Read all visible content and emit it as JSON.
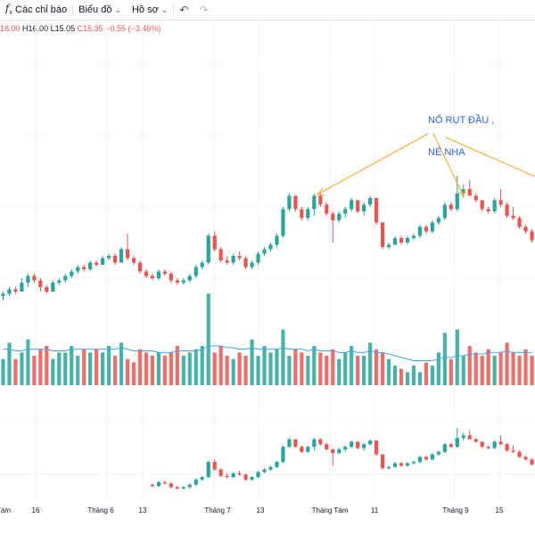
{
  "toolbar": {
    "indicators_label": "Các chỉ báo",
    "chart_label": "Biểu đồ",
    "profile_label": "Hồ sơ"
  },
  "ohlc": {
    "open": "16.00",
    "high": "H16.00",
    "low": "L15.05",
    "close": "C15.35",
    "change": "−0.55 (−3.46%)"
  },
  "annotation": {
    "line1": "NỔ RỤT ĐẦU ,",
    "line2": "NÉ NHA"
  },
  "colors": {
    "up": "#26a69a",
    "down": "#ef5350",
    "volume_ma": "#42a5f5",
    "arrow": "#f5a623",
    "annotation": "#2962ff"
  },
  "x_axis_labels": [
    "Tám",
    "16",
    "Tháng 6",
    "13",
    "Tháng 7",
    "13",
    "Tháng Tám",
    "11",
    "Tháng 9",
    "15"
  ],
  "chart_data": {
    "type": "candlestick",
    "note_scale": "price axis not shown; values in relative units",
    "candles": [
      [
        10,
        11,
        9,
        10.5
      ],
      [
        10.5,
        12,
        10,
        11.5
      ],
      [
        11.5,
        12,
        10.5,
        11
      ],
      [
        11,
        14,
        11,
        13
      ],
      [
        13,
        15,
        12,
        14.5
      ],
      [
        14.5,
        15,
        13,
        13.5
      ],
      [
        13.5,
        14,
        11,
        12
      ],
      [
        12,
        12.5,
        10.5,
        11
      ],
      [
        11,
        13.5,
        11,
        13
      ],
      [
        13,
        14,
        12.5,
        13.5
      ],
      [
        13.5,
        15,
        13,
        14.5
      ],
      [
        14.5,
        16,
        14,
        15.5
      ],
      [
        15.5,
        17,
        15,
        16.5
      ],
      [
        16.5,
        17,
        15.5,
        16
      ],
      [
        16,
        18,
        15.5,
        17.5
      ],
      [
        17.5,
        18,
        16.5,
        17
      ],
      [
        17,
        19,
        17,
        18.5
      ],
      [
        18.5,
        19.5,
        18,
        19
      ],
      [
        19,
        19.5,
        17,
        17.5
      ],
      [
        17.5,
        21,
        17.5,
        20.5
      ],
      [
        20.5,
        24,
        18,
        18.5
      ],
      [
        18.5,
        19,
        17,
        17.5
      ],
      [
        17.5,
        18,
        15,
        15.5
      ],
      [
        15.5,
        16,
        14,
        14.5
      ],
      [
        14.5,
        15,
        13.5,
        14
      ],
      [
        14,
        16,
        13.5,
        15.5
      ],
      [
        15.5,
        16,
        14.5,
        15
      ],
      [
        15,
        15.5,
        13,
        13.5
      ],
      [
        13.5,
        14,
        12.5,
        13
      ],
      [
        13,
        14,
        12.5,
        13.5
      ],
      [
        13.5,
        15,
        13,
        14.5
      ],
      [
        14.5,
        17,
        14,
        16.5
      ],
      [
        16.5,
        18,
        16,
        17.5
      ],
      [
        17.5,
        24,
        17,
        23.5
      ],
      [
        23.5,
        24.5,
        20,
        20.5
      ],
      [
        20.5,
        21,
        17.5,
        18
      ],
      [
        18,
        19,
        17,
        17.5
      ],
      [
        17.5,
        19.5,
        17,
        19
      ],
      [
        19,
        20,
        18,
        18.5
      ],
      [
        18.5,
        19,
        16,
        16.5
      ],
      [
        16.5,
        18,
        16,
        17.5
      ],
      [
        17.5,
        20,
        17,
        19.5
      ],
      [
        19.5,
        21,
        19,
        20.5
      ],
      [
        20.5,
        22,
        20,
        21.5
      ],
      [
        21.5,
        24,
        21,
        23.5
      ],
      [
        23.5,
        30,
        23,
        29.5
      ],
      [
        29.5,
        33,
        29,
        32.5
      ],
      [
        32.5,
        32.5,
        29,
        29.5
      ],
      [
        29.5,
        30,
        27,
        27.5
      ],
      [
        27.5,
        30,
        27,
        29.5
      ],
      [
        29.5,
        33,
        28,
        32.5
      ],
      [
        32.5,
        33,
        30,
        30.5
      ],
      [
        30.5,
        31,
        28,
        28.5
      ],
      [
        28.5,
        29,
        22,
        27
      ],
      [
        27,
        29,
        26.5,
        28.5
      ],
      [
        28.5,
        30,
        27.5,
        29.5
      ],
      [
        29.5,
        32,
        29,
        31.5
      ],
      [
        31.5,
        31.5,
        28.5,
        29
      ],
      [
        29,
        31,
        28,
        30.5
      ],
      [
        30.5,
        32.5,
        30,
        32
      ],
      [
        32,
        32,
        26,
        26.5
      ],
      [
        26.5,
        26.5,
        20.5,
        21
      ],
      [
        21,
        22,
        20.5,
        21.5
      ],
      [
        21.5,
        23.5,
        21.5,
        23
      ],
      [
        23,
        23.5,
        21.5,
        22
      ],
      [
        22,
        23.5,
        21.5,
        23
      ],
      [
        23,
        24,
        22.5,
        23.5
      ],
      [
        23.5,
        26,
        23,
        25.5
      ],
      [
        25.5,
        26,
        24,
        24.5
      ],
      [
        24.5,
        27,
        24,
        26.5
      ],
      [
        26.5,
        28,
        26,
        27.5
      ],
      [
        27.5,
        31,
        27,
        30.5
      ],
      [
        30.5,
        31,
        29,
        29.5
      ],
      [
        29.5,
        37,
        29,
        33
      ],
      [
        33,
        35,
        32,
        34
      ],
      [
        34,
        36,
        32.5,
        32.5
      ],
      [
        32.5,
        33,
        31,
        31.5
      ],
      [
        31.5,
        31.5,
        29,
        29.5
      ],
      [
        29.5,
        30,
        28.5,
        29
      ],
      [
        29,
        32,
        28.5,
        31.5
      ],
      [
        31.5,
        34,
        30,
        30.5
      ],
      [
        30.5,
        31,
        27.5,
        28
      ],
      [
        28,
        30,
        27,
        27.5
      ],
      [
        27.5,
        28,
        25,
        25.5
      ],
      [
        25.5,
        26,
        24,
        24.5
      ],
      [
        24.5,
        25,
        22,
        22.5
      ]
    ],
    "volumes": [
      8,
      13,
      8,
      10,
      14,
      9,
      11,
      12,
      8,
      10,
      10,
      12,
      9,
      11,
      10,
      11,
      10,
      12,
      9,
      13,
      8,
      7,
      11,
      10,
      9,
      10,
      9,
      10,
      12,
      9,
      10,
      11,
      12,
      28,
      10,
      12,
      9,
      8,
      10,
      9,
      14,
      9,
      12,
      10,
      11,
      17,
      9,
      11,
      10,
      9,
      12,
      10,
      9,
      11,
      8,
      10,
      12,
      9,
      9,
      13,
      11,
      10,
      8,
      6,
      5,
      4,
      6,
      4,
      7,
      6,
      10,
      16,
      8,
      17,
      9,
      12,
      10,
      9,
      11,
      9,
      10,
      13,
      10,
      9,
      11,
      9
    ],
    "volume_ma": [
      11,
      11,
      10.5,
      10.5,
      11,
      11,
      11,
      11,
      10.5,
      10.5,
      10.5,
      11,
      11,
      11,
      11,
      11,
      11,
      11,
      11,
      11.5,
      11,
      10.5,
      10.5,
      10.5,
      10.5,
      10,
      10,
      10,
      10.5,
      10.5,
      10.5,
      10.5,
      11,
      12,
      12,
      12,
      11.5,
      11.5,
      11,
      11,
      11.5,
      11,
      11,
      11,
      11,
      11.5,
      11,
      11,
      11,
      10.5,
      11,
      10.5,
      10.5,
      10.5,
      10,
      10,
      10.5,
      10,
      10,
      10.5,
      10,
      10,
      9.5,
      9,
      8.5,
      8,
      7.5,
      7.5,
      7.5,
      7.5,
      8,
      8.5,
      8.5,
      9,
      9,
      9.5,
      9.5,
      9.5,
      10,
      10,
      10,
      10.5,
      10,
      10,
      10,
      10
    ]
  }
}
